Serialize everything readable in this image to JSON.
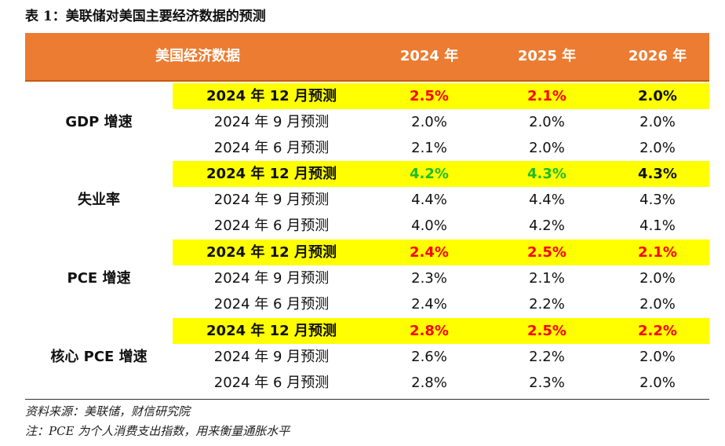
{
  "caption": "表 1：美联储对美国主要经济数据的预测",
  "header": {
    "label": "美国经济数据",
    "years": [
      "2024 年",
      "2025 年",
      "2026 年"
    ]
  },
  "groups": [
    {
      "name": "GDP 增速",
      "rows": [
        {
          "label": "2024 年 12 月预测",
          "values": [
            "2.5%",
            "2.1%",
            "2.0%"
          ]
        },
        {
          "label": "2024 年 9 月预测",
          "values": [
            "2.0%",
            "2.0%",
            "2.0%"
          ]
        },
        {
          "label": "2024 年 6 月预测",
          "values": [
            "2.1%",
            "2.0%",
            "2.0%"
          ]
        }
      ]
    },
    {
      "name": "失业率",
      "rows": [
        {
          "label": "2024 年 12 月预测",
          "values": [
            "4.2%",
            "4.3%",
            "4.3%"
          ]
        },
        {
          "label": "2024 年 9 月预测",
          "values": [
            "4.4%",
            "4.4%",
            "4.3%"
          ]
        },
        {
          "label": "2024 年 6 月预测",
          "values": [
            "4.0%",
            "4.2%",
            "4.1%"
          ]
        }
      ]
    },
    {
      "name": "PCE 增速",
      "rows": [
        {
          "label": "2024 年 12 月预测",
          "values": [
            "2.4%",
            "2.5%",
            "2.1%"
          ]
        },
        {
          "label": "2024 年 9 月预测",
          "values": [
            "2.3%",
            "2.1%",
            "2.0%"
          ]
        },
        {
          "label": "2024 年 6 月预测",
          "values": [
            "2.4%",
            "2.2%",
            "2.0%"
          ]
        }
      ]
    },
    {
      "name": "核心 PCE 增速",
      "rows": [
        {
          "label": "2024 年 12 月预测",
          "values": [
            "2.8%",
            "2.5%",
            "2.2%"
          ]
        },
        {
          "label": "2024 年 9 月预测",
          "values": [
            "2.6%",
            "2.2%",
            "2.0%"
          ]
        },
        {
          "label": "2024 年 6 月预测",
          "values": [
            "2.8%",
            "2.3%",
            "2.0%"
          ]
        }
      ]
    }
  ],
  "notes": {
    "source": "资料来源：美联储，财信研究院",
    "note": "注：PCE 为个人消费支出指数，用来衡量通胀水平"
  },
  "colors": {
    "header_bg": "#ec7c31",
    "highlight_bg": "#ffff00",
    "up_red": "#ff0000",
    "down_green": "#22bb22"
  }
}
